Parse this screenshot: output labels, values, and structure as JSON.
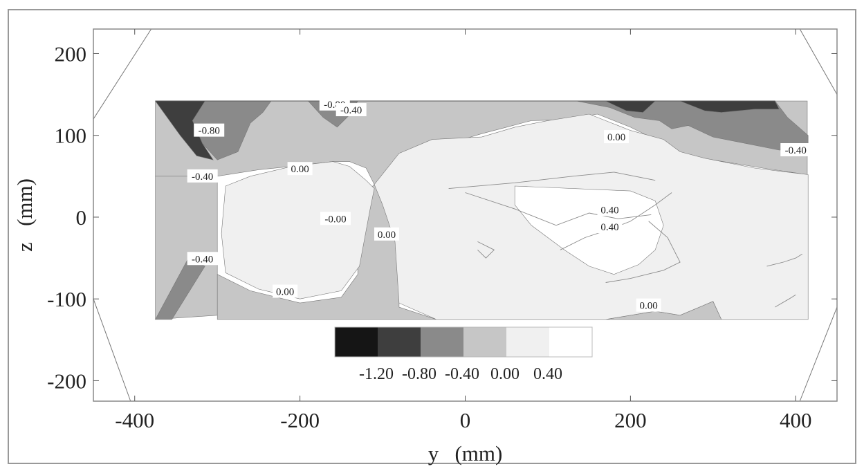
{
  "chart_data": {
    "type": "heatmap",
    "title": "",
    "xlabel": "y   (mm)",
    "ylabel": "z   (mm)",
    "xlim": [
      -450,
      450
    ],
    "ylim": [
      -225,
      230
    ],
    "x_ticks": [
      {
        "value": -400,
        "label": "-400"
      },
      {
        "value": -200,
        "label": "-200"
      },
      {
        "value": 0,
        "label": "0"
      },
      {
        "value": 200,
        "label": "200"
      },
      {
        "value": 400,
        "label": "400"
      }
    ],
    "y_ticks": [
      {
        "value": 200,
        "label": "200"
      },
      {
        "value": 100,
        "label": "100"
      },
      {
        "value": 0,
        "label": "0"
      },
      {
        "value": -100,
        "label": "-100"
      },
      {
        "value": -200,
        "label": "-200"
      }
    ],
    "measurement_domain": {
      "y_min": -375,
      "y_max": 415,
      "z_min": -125,
      "z_max": 142
    },
    "contour_levels": [
      -1.2,
      -0.8,
      -0.4,
      0.0,
      0.4
    ],
    "legend": {
      "labels": [
        "-1.20",
        "-0.80",
        "-0.40",
        "0.00",
        "0.40"
      ],
      "colors": [
        "#151515",
        "#3e3e3e",
        "#8a8a8a",
        "#c6c6c6",
        "#f0f0f0",
        "#ffffff"
      ]
    },
    "regions": [
      {
        "level": "-0.40",
        "color": "#c6c6c6",
        "points": [
          [
            -375,
            142
          ],
          [
            414,
            142
          ],
          [
            414,
            52
          ],
          [
            360,
            60
          ],
          [
            300,
            70
          ],
          [
            250,
            75
          ],
          [
            230,
            95
          ],
          [
            200,
            110
          ],
          [
            160,
            126
          ],
          [
            120,
            119
          ],
          [
            80,
            118
          ],
          [
            50,
            110
          ],
          [
            20,
            102
          ],
          [
            -20,
            90
          ],
          [
            -60,
            66
          ],
          [
            -90,
            50
          ],
          [
            -110,
            40
          ],
          [
            -120,
            60
          ],
          [
            -140,
            68
          ],
          [
            -160,
            68
          ],
          [
            -210,
            62
          ],
          [
            -250,
            58
          ],
          [
            -300,
            50
          ],
          [
            -375,
            50
          ]
        ]
      },
      {
        "level": "-0.40",
        "color": "#c6c6c6",
        "points": [
          [
            -375,
            50
          ],
          [
            -300,
            50
          ],
          [
            -300,
            -120
          ],
          [
            -375,
            -125
          ]
        ]
      },
      {
        "level": "-0.40",
        "color": "#c6c6c6",
        "points": [
          [
            -300,
            -70
          ],
          [
            -260,
            -90
          ],
          [
            -200,
            -105
          ],
          [
            -150,
            -98
          ],
          [
            -130,
            -70
          ],
          [
            -130,
            20
          ],
          [
            -110,
            40
          ],
          [
            -100,
            20
          ],
          [
            -80,
            -30
          ],
          [
            -80,
            -110
          ],
          [
            -35,
            -125
          ],
          [
            -300,
            -125
          ]
        ]
      },
      {
        "level": "-0.40",
        "color": "#c6c6c6",
        "points": [
          [
            170,
            -125
          ],
          [
            230,
            -115
          ],
          [
            260,
            -120
          ],
          [
            300,
            -103
          ],
          [
            310,
            -125
          ]
        ]
      },
      {
        "level": "-0.80",
        "color": "#8a8a8a",
        "points": [
          [
            -315,
            142
          ],
          [
            -235,
            142
          ],
          [
            -245,
            128
          ],
          [
            -260,
            115
          ],
          [
            -275,
            80
          ],
          [
            -300,
            70
          ],
          [
            -318,
            90
          ],
          [
            -330,
            118
          ]
        ]
      },
      {
        "level": "-0.80",
        "color": "#8a8a8a",
        "points": [
          [
            -190,
            142
          ],
          [
            -130,
            142
          ],
          [
            -140,
            125
          ],
          [
            -155,
            110
          ],
          [
            -172,
            122
          ]
        ]
      },
      {
        "level": "-0.80",
        "color": "#8a8a8a",
        "points": [
          [
            135,
            142
          ],
          [
            375,
            142
          ],
          [
            390,
            122
          ],
          [
            415,
            100
          ],
          [
            415,
            82
          ],
          [
            380,
            82
          ],
          [
            300,
            98
          ],
          [
            270,
            112
          ],
          [
            250,
            108
          ],
          [
            235,
            118
          ],
          [
            205,
            122
          ],
          [
            175,
            134
          ]
        ]
      },
      {
        "level": "-0.80",
        "color": "#8a8a8a",
        "points": [
          [
            -335,
            -50
          ],
          [
            -315,
            -60
          ],
          [
            -355,
            -125
          ],
          [
            -375,
            -125
          ]
        ]
      },
      {
        "level": "-1.20",
        "color": "#3e3e3e",
        "points": [
          [
            -375,
            142
          ],
          [
            -315,
            142
          ],
          [
            -330,
            118
          ],
          [
            -318,
            90
          ],
          [
            -305,
            70
          ],
          [
            -325,
            75
          ],
          [
            -345,
            100
          ]
        ]
      },
      {
        "level": "-1.20",
        "color": "#3e3e3e",
        "points": [
          [
            170,
            142
          ],
          [
            230,
            142
          ],
          [
            215,
            128
          ],
          [
            195,
            130
          ]
        ]
      },
      {
        "level": "-1.20",
        "color": "#3e3e3e",
        "points": [
          [
            260,
            142
          ],
          [
            375,
            142
          ],
          [
            380,
            132
          ],
          [
            350,
            132
          ],
          [
            310,
            128
          ],
          [
            290,
            130
          ]
        ]
      },
      {
        "level": "0.00",
        "color": "#f0f0f0",
        "points": [
          [
            -290,
            38
          ],
          [
            -260,
            50
          ],
          [
            -210,
            62
          ],
          [
            -160,
            68
          ],
          [
            -140,
            62
          ],
          [
            -120,
            45
          ],
          [
            -110,
            35
          ],
          [
            -115,
            10
          ],
          [
            -128,
            -60
          ],
          [
            -150,
            -90
          ],
          [
            -200,
            -100
          ],
          [
            -250,
            -88
          ],
          [
            -290,
            -68
          ],
          [
            -295,
            -20
          ]
        ]
      },
      {
        "level": "0.00",
        "color": "#f0f0f0",
        "points": [
          [
            -110,
            40
          ],
          [
            -80,
            78
          ],
          [
            -40,
            95
          ],
          [
            20,
            98
          ],
          [
            60,
            110
          ],
          [
            100,
            118
          ],
          [
            150,
            126
          ],
          [
            200,
            106
          ],
          [
            240,
            95
          ],
          [
            260,
            80
          ],
          [
            290,
            72
          ],
          [
            350,
            60
          ],
          [
            415,
            52
          ],
          [
            415,
            -125
          ],
          [
            310,
            -125
          ],
          [
            300,
            -103
          ],
          [
            260,
            -120
          ],
          [
            230,
            -115
          ],
          [
            170,
            -125
          ],
          [
            -35,
            -125
          ],
          [
            -80,
            -105
          ],
          [
            -85,
            -30
          ],
          [
            -100,
            15
          ]
        ]
      },
      {
        "level": "0.40",
        "color": "#ffffff",
        "points": [
          [
            60,
            38
          ],
          [
            200,
            32
          ],
          [
            230,
            20
          ],
          [
            240,
            -10
          ],
          [
            230,
            -40
          ],
          [
            210,
            -58
          ],
          [
            180,
            -70
          ],
          [
            150,
            -60
          ],
          [
            120,
            -40
          ],
          [
            80,
            -10
          ],
          [
            60,
            15
          ]
        ]
      }
    ],
    "contour_lines": [
      {
        "level": "0.40",
        "points": [
          [
            -20,
            35
          ],
          [
            60,
            42
          ],
          [
            130,
            50
          ],
          [
            180,
            55
          ],
          [
            230,
            45
          ]
        ]
      },
      {
        "level": "0.40",
        "points": [
          [
            0,
            30
          ],
          [
            60,
            10
          ],
          [
            110,
            -10
          ],
          [
            150,
            5
          ],
          [
            185,
            -2
          ],
          [
            225,
            3
          ]
        ]
      },
      {
        "level": "0.40",
        "points": [
          [
            115,
            -40
          ],
          [
            145,
            -25
          ],
          [
            175,
            -15
          ],
          [
            200,
            -5
          ],
          [
            230,
            15
          ],
          [
            250,
            30
          ]
        ]
      },
      {
        "level": "0.40",
        "points": [
          [
            170,
            -80
          ],
          [
            200,
            -75
          ],
          [
            240,
            -65
          ],
          [
            260,
            -55
          ],
          [
            245,
            -25
          ],
          [
            222,
            -5
          ]
        ]
      },
      {
        "level": "0.40",
        "points": [
          [
            15,
            -30
          ],
          [
            35,
            -40
          ],
          [
            25,
            -50
          ],
          [
            15,
            -40
          ]
        ]
      },
      {
        "level": "0.40",
        "points": [
          [
            365,
            -60
          ],
          [
            385,
            -55
          ],
          [
            400,
            -50
          ],
          [
            408,
            -45
          ]
        ]
      },
      {
        "level": "0.40",
        "points": [
          [
            375,
            -110
          ],
          [
            392,
            -100
          ],
          [
            400,
            -95
          ]
        ]
      }
    ],
    "contour_labels": [
      {
        "text": "-0.80",
        "x": -158,
        "z": 138
      },
      {
        "text": "-0.40",
        "x": -138,
        "z": 131
      },
      {
        "text": "-0.80",
        "x": -310,
        "z": 106
      },
      {
        "text": "0.00",
        "x": 183,
        "z": 98
      },
      {
        "text": "-0.40",
        "x": 400,
        "z": 82
      },
      {
        "text": "0.00",
        "x": -200,
        "z": 59
      },
      {
        "text": "-0.40",
        "x": -318,
        "z": 50
      },
      {
        "text": "-0.00",
        "x": -157,
        "z": -2
      },
      {
        "text": "0.40",
        "x": 175,
        "z": 9
      },
      {
        "text": "0.40",
        "x": 175,
        "z": -12
      },
      {
        "text": "0.00",
        "x": -95,
        "z": -21
      },
      {
        "text": "-0.40",
        "x": -318,
        "z": -51
      },
      {
        "text": "0.00",
        "x": -218,
        "z": -91
      },
      {
        "text": "0.00",
        "x": 222,
        "z": -108
      }
    ],
    "frame_guides": [
      [
        [
          -380,
          230
        ],
        [
          -450,
          120
        ]
      ],
      [
        [
          -450,
          -100
        ],
        [
          -405,
          -225
        ]
      ],
      [
        [
          405,
          230
        ],
        [
          450,
          150
        ]
      ],
      [
        [
          450,
          -110
        ],
        [
          405,
          -225
        ]
      ]
    ]
  }
}
